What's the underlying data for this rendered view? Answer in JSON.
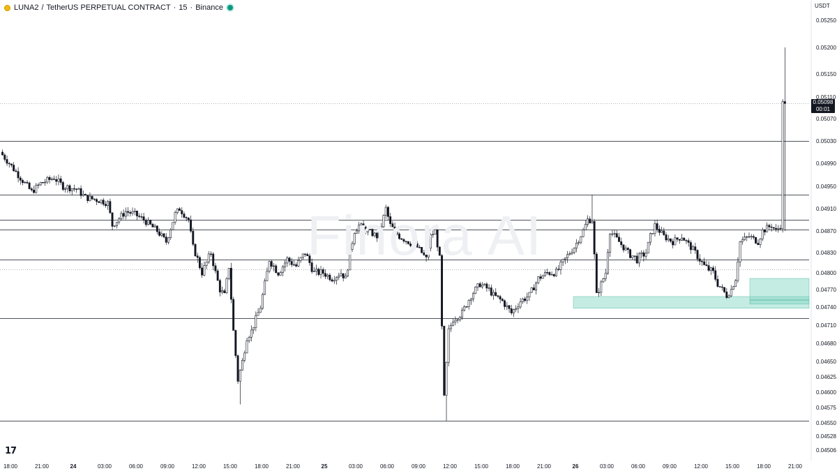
{
  "header": {
    "symbol": "LUNA2",
    "separator": "/",
    "contract": "TetherUS PERPETUAL CONTRACT",
    "interval": "15",
    "exchange": "Binance",
    "dot": "·"
  },
  "currency": "USDT",
  "watermark": "Finora AI",
  "logo": "17",
  "last_price": {
    "value": "0.05098",
    "countdown": "00:01"
  },
  "chart_data": {
    "type": "candlestick",
    "y_ticks": [
      0.0525,
      0.052,
      0.0515,
      0.0511,
      0.0507,
      0.0503,
      0.0499,
      0.0495,
      0.0491,
      0.0487,
      0.0483,
      0.048,
      0.0477,
      0.0474,
      0.0471,
      0.0468,
      0.0465,
      0.04625,
      0.046,
      0.04575,
      0.0455,
      0.04528,
      0.04506
    ],
    "y_tick_labels": [
      "0.05250",
      "0.05200",
      "0.05150",
      "0.05110",
      "0.05070",
      "0.05030",
      "0.04990",
      "0.04950",
      "0.04910",
      "0.04870",
      "0.04830",
      "0.04800",
      "0.04770",
      "0.04740",
      "0.04710",
      "0.04680",
      "0.04650",
      "0.04625",
      "0.04600",
      "0.04575",
      "0.04550",
      "0.04528",
      "0.04506"
    ],
    "x_tick_labels": [
      "18:00",
      "21:00",
      "24",
      "03:00",
      "06:00",
      "09:00",
      "12:00",
      "15:00",
      "18:00",
      "21:00",
      "25",
      "03:00",
      "06:00",
      "09:00",
      "12:00",
      "15:00",
      "18:00",
      "21:00",
      "26",
      "03:00",
      "06:00",
      "09:00",
      "12:00",
      "15:00",
      "18:00",
      "21:00"
    ],
    "x_bold": [
      "24",
      "25",
      "26"
    ],
    "horizontal_levels": [
      0.0503,
      0.04935,
      0.0489,
      0.04873,
      0.0482,
      0.04722,
      0.04553
    ],
    "dotted_levels": [
      0.05098,
      0.04805
    ],
    "demand_zones": [
      {
        "from_tick": 18,
        "to_end": true,
        "low": 0.04738,
        "high": 0.04758
      },
      {
        "from_tick": 23.5,
        "to_end": true,
        "low": 0.04745,
        "high": 0.0479
      }
    ],
    "price_path": [
      [
        0,
        0.0501
      ],
      [
        4,
        0.0499
      ],
      [
        10,
        0.0496
      ],
      [
        14,
        0.0494
      ],
      [
        18,
        0.04955
      ],
      [
        24,
        0.04965
      ],
      [
        28,
        0.0495
      ],
      [
        34,
        0.04945
      ],
      [
        38,
        0.0493
      ],
      [
        44,
        0.04925
      ],
      [
        48,
        0.0492
      ],
      [
        50,
        0.0488
      ],
      [
        56,
        0.04905
      ],
      [
        60,
        0.049
      ],
      [
        64,
        0.0489
      ],
      [
        70,
        0.0487
      ],
      [
        74,
        0.0485
      ],
      [
        78,
        0.049
      ],
      [
        80,
        0.0491
      ],
      [
        84,
        0.0489
      ],
      [
        86,
        0.0484
      ],
      [
        90,
        0.048
      ],
      [
        94,
        0.0483
      ],
      [
        98,
        0.0477
      ],
      [
        100,
        0.0476
      ],
      [
        102,
        0.0481
      ],
      [
        104,
        0.047
      ],
      [
        106,
        0.0462
      ],
      [
        108,
        0.0465
      ],
      [
        110,
        0.0469
      ],
      [
        112,
        0.047
      ],
      [
        114,
        0.0472
      ],
      [
        116,
        0.0474
      ],
      [
        118,
        0.0478
      ],
      [
        120,
        0.0482
      ],
      [
        124,
        0.048
      ],
      [
        128,
        0.0482
      ],
      [
        132,
        0.0481
      ],
      [
        136,
        0.0483
      ],
      [
        140,
        0.048
      ],
      [
        144,
        0.048
      ],
      [
        148,
        0.0479
      ],
      [
        152,
        0.048
      ],
      [
        154,
        0.0479
      ],
      [
        158,
        0.0487
      ],
      [
        160,
        0.0488
      ],
      [
        164,
        0.0487
      ],
      [
        168,
        0.0486
      ],
      [
        170,
        0.0488
      ],
      [
        172,
        0.0491
      ],
      [
        174,
        0.0488
      ],
      [
        178,
        0.0486
      ],
      [
        182,
        0.0485
      ],
      [
        186,
        0.0484
      ],
      [
        190,
        0.0482
      ],
      [
        192,
        0.0486
      ],
      [
        194,
        0.0487
      ],
      [
        196,
        0.0482
      ],
      [
        198,
        0.0459
      ],
      [
        200,
        0.047
      ],
      [
        202,
        0.0472
      ],
      [
        206,
        0.0473
      ],
      [
        210,
        0.0476
      ],
      [
        214,
        0.0478
      ],
      [
        218,
        0.0477
      ],
      [
        220,
        0.0476
      ],
      [
        224,
        0.0475
      ],
      [
        228,
        0.0473
      ],
      [
        232,
        0.0475
      ],
      [
        236,
        0.0476
      ],
      [
        240,
        0.0479
      ],
      [
        244,
        0.048
      ],
      [
        248,
        0.048
      ],
      [
        252,
        0.0482
      ],
      [
        256,
        0.0484
      ],
      [
        260,
        0.0487
      ],
      [
        262,
        0.0489
      ],
      [
        264,
        0.0489
      ],
      [
        266,
        0.0476
      ],
      [
        268,
        0.0478
      ],
      [
        270,
        0.048
      ],
      [
        272,
        0.0487
      ],
      [
        276,
        0.0485
      ],
      [
        280,
        0.0483
      ],
      [
        284,
        0.0482
      ],
      [
        288,
        0.0483
      ],
      [
        290,
        0.0486
      ],
      [
        292,
        0.0488
      ],
      [
        296,
        0.0486
      ],
      [
        300,
        0.0485
      ],
      [
        304,
        0.0486
      ],
      [
        306,
        0.0485
      ],
      [
        310,
        0.0483
      ],
      [
        314,
        0.0481
      ],
      [
        318,
        0.048
      ],
      [
        320,
        0.0478
      ],
      [
        322,
        0.0477
      ],
      [
        324,
        0.0476
      ],
      [
        326,
        0.0477
      ],
      [
        328,
        0.0479
      ],
      [
        330,
        0.0485
      ],
      [
        334,
        0.0486
      ],
      [
        338,
        0.0485
      ],
      [
        340,
        0.0487
      ],
      [
        344,
        0.0488
      ],
      [
        346,
        0.0487
      ],
      [
        348,
        0.0488
      ],
      [
        349,
        0.05098
      ]
    ],
    "spike_high": 0.052,
    "spike_low_1": 0.0458,
    "spike_low_2": 0.04553
  }
}
